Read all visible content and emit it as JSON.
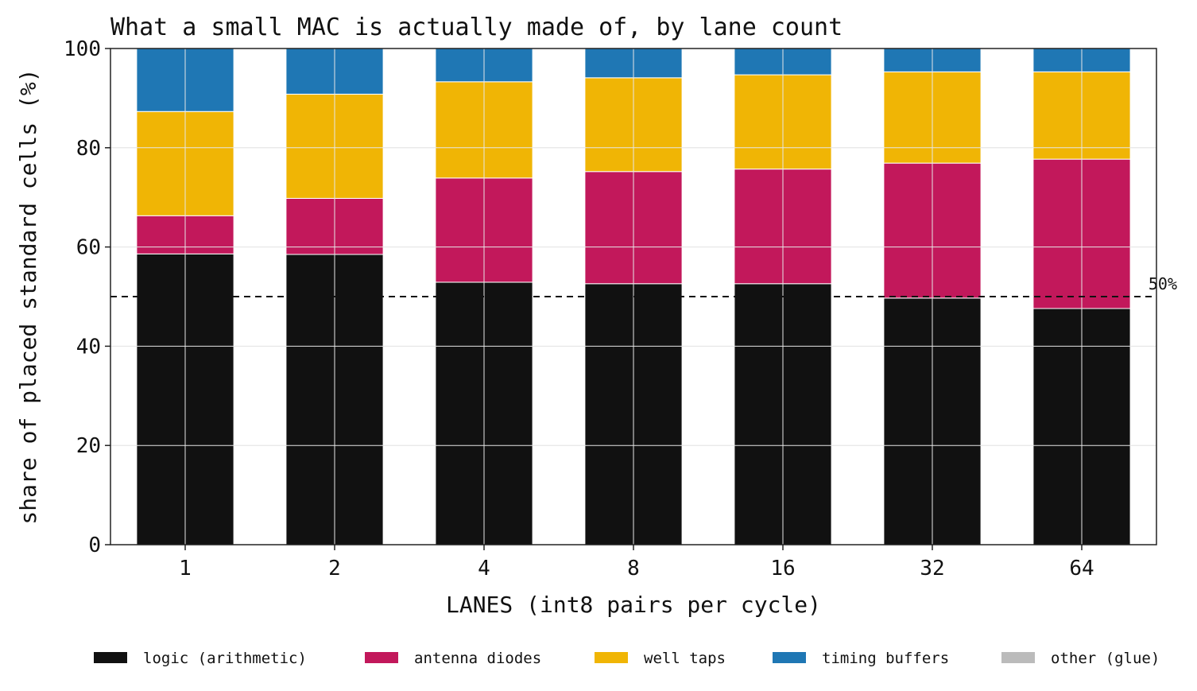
{
  "chart_data": {
    "type": "bar",
    "stacked": true,
    "title": "What a small MAC is actually made of, by lane count",
    "xlabel": "LANES (int8 pairs per cycle)",
    "ylabel": "share of placed standard cells (%)",
    "ylim": [
      0,
      100
    ],
    "yticks": [
      "0",
      "20",
      "40",
      "60",
      "80",
      "100"
    ],
    "categories": [
      "1",
      "2",
      "4",
      "8",
      "16",
      "32",
      "64"
    ],
    "grid": true,
    "legend_position": "bottom",
    "series": [
      {
        "name": "logic (arithmetic)",
        "color": "#111111",
        "values": [
          58.6,
          58.5,
          52.9,
          52.6,
          52.6,
          49.7,
          47.6
        ]
      },
      {
        "name": "antenna diodes",
        "color": "#c2185b",
        "values": [
          7.7,
          11.3,
          21.0,
          22.6,
          23.1,
          27.2,
          30.1
        ]
      },
      {
        "name": "well taps",
        "color": "#f0b505",
        "values": [
          21.0,
          21.0,
          19.4,
          18.9,
          19.0,
          18.4,
          17.6
        ]
      },
      {
        "name": "timing buffers",
        "color": "#1f77b4",
        "values": [
          12.7,
          9.2,
          6.7,
          5.9,
          5.3,
          4.7,
          4.7
        ]
      },
      {
        "name": "other (glue)",
        "color": "#bbbbbb",
        "values": [
          0,
          0,
          0,
          0,
          0,
          0,
          0
        ]
      }
    ],
    "reference_line": {
      "value": 50,
      "label": "50%",
      "style": "dashed"
    }
  }
}
